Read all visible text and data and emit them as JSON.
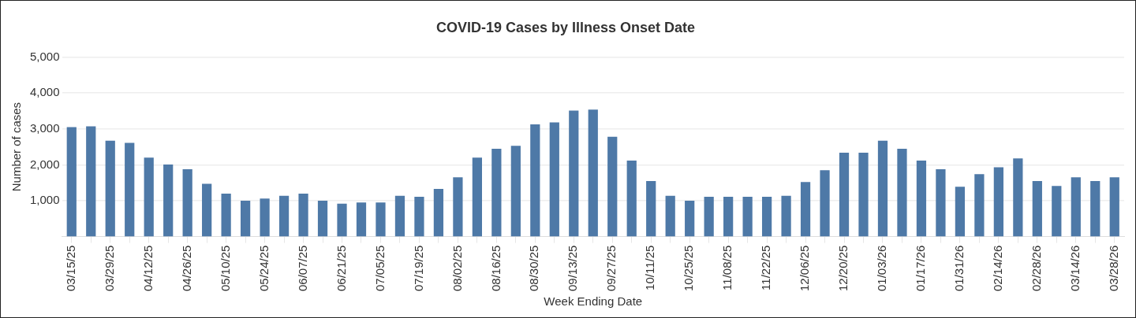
{
  "chart_data": {
    "type": "bar",
    "title": "COVID-19 Cases by Illness Onset Date",
    "xlabel": "Week Ending Date",
    "ylabel": "Number of cases",
    "categories": [
      "03/15/25",
      null,
      "03/29/25",
      null,
      "04/12/25",
      null,
      "04/26/25",
      null,
      "05/10/25",
      null,
      "05/24/25",
      null,
      "06/07/25",
      null,
      "06/21/25",
      null,
      "07/05/25",
      null,
      "07/19/25",
      null,
      "08/02/25",
      null,
      "08/16/25",
      null,
      "08/30/25",
      null,
      "09/13/25",
      null,
      "09/27/25",
      null,
      "10/11/25",
      null,
      "10/25/25",
      null,
      "11/08/25",
      null,
      "11/22/25",
      null,
      "12/06/25",
      null,
      "12/20/25",
      null,
      "01/03/26",
      null,
      "01/17/26",
      null,
      "01/31/26",
      null,
      "02/14/26",
      null,
      "02/28/26",
      null,
      "03/14/26",
      null,
      "03/28/26"
    ],
    "values": [
      3050,
      3070,
      2670,
      2610,
      2200,
      2010,
      1880,
      1470,
      1200,
      1000,
      1060,
      1140,
      1200,
      1000,
      920,
      950,
      950,
      1140,
      1110,
      1330,
      1650,
      2200,
      2450,
      2530,
      3130,
      3180,
      3510,
      3540,
      2780,
      2120,
      1550,
      1140,
      1000,
      1110,
      1110,
      1110,
      1110,
      1140,
      1520,
      1850,
      2340,
      2340,
      2670,
      2450,
      2120,
      1880,
      1390,
      1740,
      1930,
      2180,
      1550,
      1410,
      1650,
      1550,
      1650
    ],
    "color": "#4e79a7",
    "ylim": [
      0,
      5000
    ],
    "yticks": [
      {
        "value": 1000,
        "label": "1,000"
      },
      {
        "value": 2000,
        "label": "2,000"
      },
      {
        "value": 3000,
        "label": "3,000"
      },
      {
        "value": 4000,
        "label": "4,000"
      },
      {
        "value": 5000,
        "label": "5,000"
      }
    ],
    "grid": "y"
  }
}
